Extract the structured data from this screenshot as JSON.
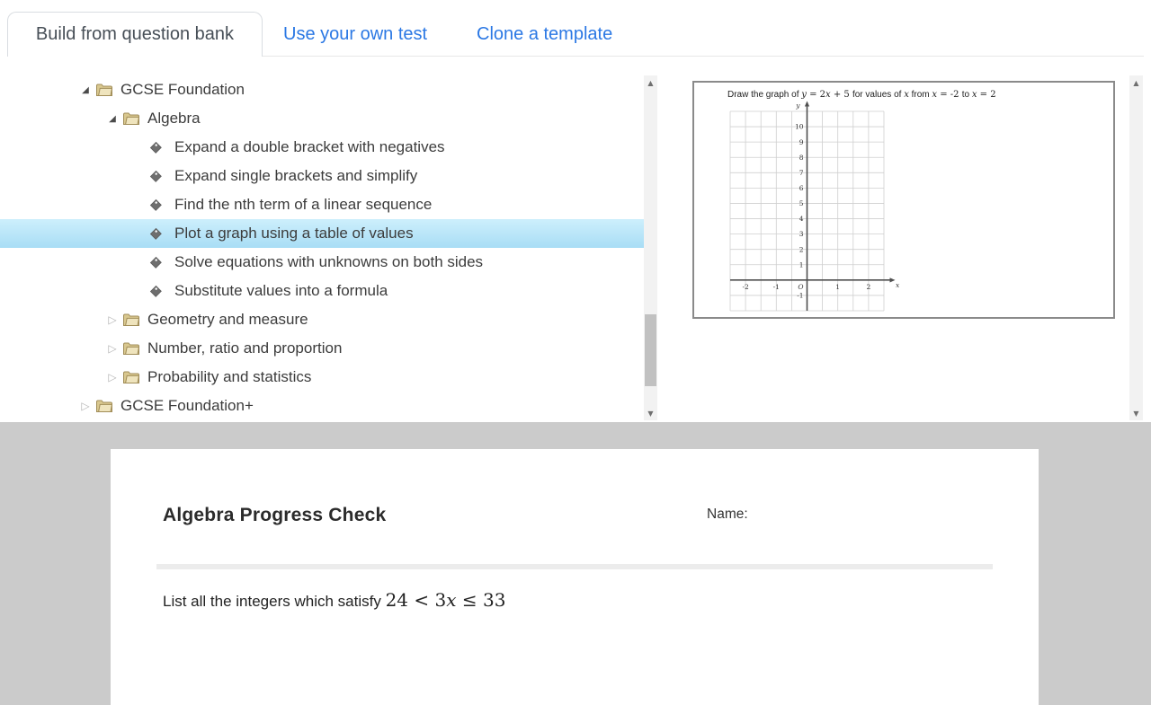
{
  "tabs": [
    {
      "label": "Build from question bank",
      "active": true
    },
    {
      "label": "Use your own test",
      "active": false
    },
    {
      "label": "Clone a template",
      "active": false
    }
  ],
  "icons": {
    "expanded": "◢",
    "collapsed": "▷",
    "folder": "folder-icon",
    "tag": "tag-icon",
    "scroll_up": "▲",
    "scroll_down": "▼"
  },
  "tree": {
    "items": [
      {
        "label": "GCSE Foundation",
        "type": "folder",
        "level": 0,
        "state": "expanded",
        "selected": false
      },
      {
        "label": "Algebra",
        "type": "folder",
        "level": 1,
        "state": "expanded",
        "selected": false
      },
      {
        "label": "Expand a double bracket with negatives",
        "type": "tag",
        "level": 2,
        "state": "none",
        "selected": false
      },
      {
        "label": "Expand single brackets and simplify",
        "type": "tag",
        "level": 2,
        "state": "none",
        "selected": false
      },
      {
        "label": "Find the nth term of a linear sequence",
        "type": "tag",
        "level": 2,
        "state": "none",
        "selected": false
      },
      {
        "label": "Plot a graph using a table of values",
        "type": "tag",
        "level": 2,
        "state": "none",
        "selected": true
      },
      {
        "label": "Solve equations with unknowns on both sides",
        "type": "tag",
        "level": 2,
        "state": "none",
        "selected": false
      },
      {
        "label": "Substitute values into a formula",
        "type": "tag",
        "level": 2,
        "state": "none",
        "selected": false
      },
      {
        "label": "Geometry and measure",
        "type": "folder",
        "level": 1,
        "state": "collapsed",
        "selected": false
      },
      {
        "label": "Number, ratio and proportion",
        "type": "folder",
        "level": 1,
        "state": "collapsed",
        "selected": false
      },
      {
        "label": "Probability and statistics",
        "type": "folder",
        "level": 1,
        "state": "collapsed",
        "selected": false
      },
      {
        "label": "GCSE Foundation+",
        "type": "folder",
        "level": 0,
        "state": "collapsed",
        "selected": false
      }
    ]
  },
  "preview": {
    "question_segments": [
      {
        "t": "Draw the graph of ",
        "k": "w"
      },
      {
        "t": "y",
        "k": "v"
      },
      {
        "t": " = 2",
        "k": "m"
      },
      {
        "t": "x",
        "k": "v"
      },
      {
        "t": " + 5 ",
        "k": "m"
      },
      {
        "t": "for values of ",
        "k": "w"
      },
      {
        "t": "x",
        "k": "v"
      },
      {
        "t": " from ",
        "k": "w"
      },
      {
        "t": "x",
        "k": "v"
      },
      {
        "t": " = -2 ",
        "k": "m"
      },
      {
        "t": "to ",
        "k": "w"
      },
      {
        "t": "x",
        "k": "v"
      },
      {
        "t": " = 2",
        "k": "m"
      }
    ]
  },
  "chart_data": {
    "type": "line",
    "title": "Draw the graph of y = 2x + 5 for values of x from x = -2 to x = 2",
    "equation": "y = 2x + 5",
    "xlabel": "x",
    "ylabel": "y",
    "origin_label": "O",
    "xlim": [
      -2.5,
      2.5
    ],
    "ylim": [
      -2,
      11
    ],
    "x_gridstep": 0.5,
    "y_gridstep": 1,
    "x_ticks": [
      -2,
      -1,
      1,
      2
    ],
    "y_ticks": [
      -1,
      1,
      2,
      3,
      4,
      5,
      6,
      7,
      8,
      9,
      10
    ],
    "grid": true,
    "series": []
  },
  "document": {
    "title": "Algebra Progress Check",
    "name_label": "Name:",
    "question_segments": [
      {
        "t": "List all the integers which satisfy ",
        "k": "w"
      },
      {
        "t": "24 < 3",
        "k": "m"
      },
      {
        "t": "x",
        "k": "v"
      },
      {
        "t": " ≤ 33",
        "k": "m"
      }
    ]
  }
}
